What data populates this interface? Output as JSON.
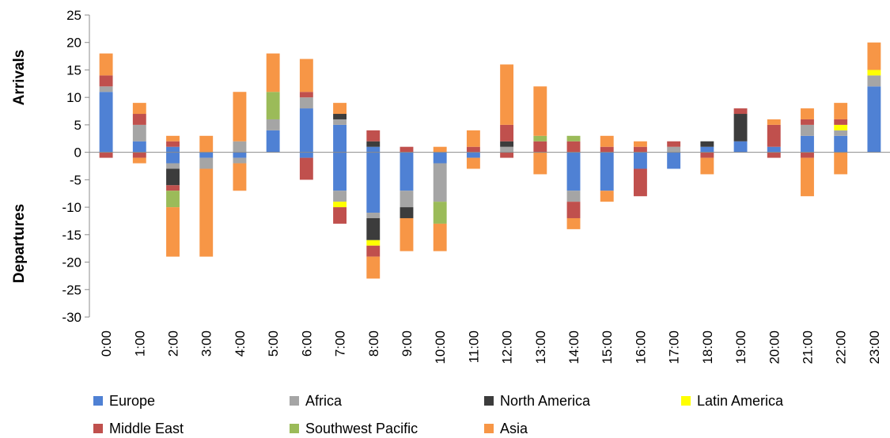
{
  "chart_data": {
    "type": "bar",
    "stacked": true,
    "title": "",
    "ylabel_top": "Arrivals",
    "ylabel_bottom": "Departures",
    "ylim": [
      -30,
      25
    ],
    "yticks": [
      25,
      20,
      15,
      10,
      5,
      0,
      -5,
      -10,
      -15,
      -20,
      -25,
      -30
    ],
    "categories": [
      "0:00",
      "1:00",
      "2:00",
      "3:00",
      "4:00",
      "5:00",
      "6:00",
      "7:00",
      "8:00",
      "9:00",
      "10:00",
      "11:00",
      "12:00",
      "13:00",
      "14:00",
      "15:00",
      "16:00",
      "17:00",
      "18:00",
      "19:00",
      "20:00",
      "21:00",
      "22:00",
      "23:00"
    ],
    "legend_position": "bottom",
    "series": [
      {
        "name": "Europe",
        "color": "#4f81d4",
        "arrivals": [
          11,
          2,
          1,
          0,
          0,
          4,
          8,
          5,
          1,
          0,
          0,
          0,
          0,
          0,
          0,
          0,
          0,
          0,
          1,
          2,
          1,
          3,
          3,
          12
        ],
        "departures": [
          0,
          0,
          2,
          1,
          1,
          0,
          1,
          7,
          11,
          7,
          2,
          1,
          0,
          0,
          7,
          7,
          3,
          3,
          0,
          0,
          0,
          0,
          0,
          0
        ]
      },
      {
        "name": "Africa",
        "color": "#a5a5a5",
        "arrivals": [
          1,
          3,
          0,
          0,
          2,
          2,
          2,
          1,
          0,
          0,
          0,
          0,
          1,
          0,
          0,
          0,
          0,
          1,
          0,
          0,
          0,
          2,
          1,
          2
        ],
        "departures": [
          0,
          0,
          1,
          2,
          1,
          0,
          0,
          2,
          1,
          3,
          7,
          0,
          0,
          0,
          2,
          0,
          0,
          0,
          0,
          0,
          0,
          0,
          0,
          0
        ]
      },
      {
        "name": "North America",
        "color": "#3c3c3c",
        "arrivals": [
          0,
          0,
          0,
          0,
          0,
          0,
          0,
          1,
          1,
          0,
          0,
          0,
          1,
          0,
          0,
          0,
          0,
          0,
          1,
          5,
          0,
          0,
          0,
          0
        ],
        "departures": [
          0,
          0,
          3,
          0,
          0,
          0,
          0,
          0,
          4,
          2,
          0,
          0,
          0,
          0,
          0,
          0,
          0,
          0,
          0,
          0,
          0,
          0,
          0,
          0
        ]
      },
      {
        "name": "Latin America",
        "color": "#ffff00",
        "arrivals": [
          0,
          0,
          0,
          0,
          0,
          0,
          0,
          0,
          0,
          0,
          0,
          0,
          0,
          0,
          0,
          0,
          0,
          0,
          0,
          0,
          0,
          0,
          1,
          1
        ],
        "departures": [
          0,
          0,
          0,
          0,
          0,
          0,
          0,
          1,
          1,
          0,
          0,
          0,
          0,
          0,
          0,
          0,
          0,
          0,
          0,
          0,
          0,
          0,
          0,
          0
        ]
      },
      {
        "name": "Middle East",
        "color": "#c0504d",
        "arrivals": [
          2,
          2,
          1,
          0,
          0,
          0,
          1,
          0,
          2,
          1,
          0,
          1,
          3,
          2,
          2,
          1,
          1,
          1,
          0,
          1,
          4,
          1,
          1,
          0
        ],
        "departures": [
          1,
          1,
          1,
          0,
          0,
          0,
          4,
          3,
          2,
          0,
          0,
          0,
          1,
          0,
          3,
          0,
          5,
          0,
          1,
          0,
          1,
          1,
          0,
          0
        ]
      },
      {
        "name": "Southwest Pacific",
        "color": "#9bbb59",
        "arrivals": [
          0,
          0,
          0,
          0,
          0,
          5,
          0,
          0,
          0,
          0,
          0,
          0,
          0,
          1,
          1,
          0,
          0,
          0,
          0,
          0,
          0,
          0,
          0,
          0
        ],
        "departures": [
          0,
          0,
          3,
          0,
          0,
          0,
          0,
          0,
          0,
          0,
          4,
          0,
          0,
          0,
          0,
          0,
          0,
          0,
          0,
          0,
          0,
          0,
          0,
          0
        ]
      },
      {
        "name": "Asia",
        "color": "#f79646",
        "arrivals": [
          4,
          2,
          1,
          3,
          9,
          7,
          6,
          2,
          0,
          0,
          1,
          3,
          11,
          9,
          0,
          2,
          1,
          0,
          0,
          0,
          1,
          2,
          3,
          5
        ],
        "departures": [
          0,
          1,
          9,
          16,
          5,
          0,
          0,
          0,
          4,
          6,
          5,
          2,
          0,
          4,
          2,
          2,
          0,
          0,
          3,
          0,
          0,
          7,
          4,
          0
        ]
      }
    ]
  }
}
